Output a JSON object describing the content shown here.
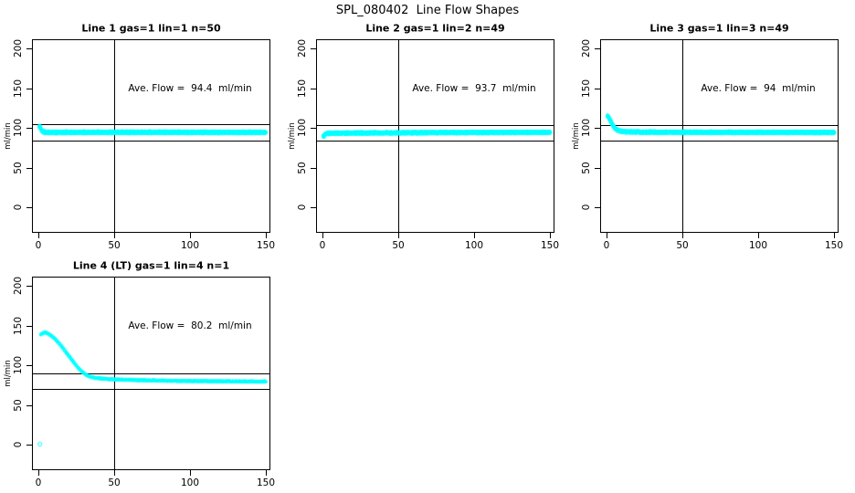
{
  "title": "SPL_080402  Line Flow Shapes",
  "colors": {
    "points": "#00ffff",
    "axis": "#000000",
    "background": "#ffffff"
  },
  "chart_data": [
    {
      "type": "scatter",
      "title": "Line 1 gas=1 lin=1 n=50",
      "annotation": "Ave. Flow =  94.4  ml/min",
      "ave_flow_ml_min": 94.4,
      "n_runs": 50,
      "ylabel": "ml/min",
      "xlim": [
        0,
        150
      ],
      "ylim": [
        0,
        200
      ],
      "x_ticks": [
        0,
        50,
        100,
        150
      ],
      "y_ticks": [
        0,
        50,
        100,
        150,
        200
      ],
      "vline_x": 50,
      "hlines": [
        104.4,
        84.4
      ],
      "spread": 1.3,
      "profile": [
        [
          1,
          101.5
        ],
        [
          1.5,
          99.5
        ],
        [
          2,
          97.5
        ],
        [
          2.5,
          96.3
        ],
        [
          3,
          95.5
        ],
        [
          4,
          94.8
        ],
        [
          5,
          94.5
        ],
        [
          8,
          94.3
        ],
        [
          20,
          94.3
        ],
        [
          60,
          94.4
        ],
        [
          100,
          94.3
        ],
        [
          150,
          94.2
        ]
      ],
      "extra_points": []
    },
    {
      "type": "scatter",
      "title": "Line 2 gas=1 lin=2 n=49",
      "annotation": "Ave. Flow =  93.7  ml/min",
      "ave_flow_ml_min": 93.7,
      "n_runs": 49,
      "ylabel": "ml/min",
      "xlim": [
        0,
        150
      ],
      "ylim": [
        0,
        200
      ],
      "x_ticks": [
        0,
        50,
        100,
        150
      ],
      "y_ticks": [
        0,
        50,
        100,
        150,
        200
      ],
      "vline_x": 50,
      "hlines": [
        103.7,
        83.7
      ],
      "spread": 1.2,
      "profile": [
        [
          1,
          89.5
        ],
        [
          1.5,
          91.0
        ],
        [
          2,
          92.3
        ],
        [
          3,
          93.0
        ],
        [
          5,
          93.3
        ],
        [
          20,
          93.5
        ],
        [
          60,
          93.8
        ],
        [
          100,
          94.0
        ],
        [
          150,
          94.3
        ]
      ],
      "extra_points": []
    },
    {
      "type": "scatter",
      "title": "Line 3 gas=1 lin=3 n=49",
      "annotation": "Ave. Flow =  94  ml/min",
      "ave_flow_ml_min": 94,
      "n_runs": 49,
      "ylabel": "ml/min",
      "xlim": [
        0,
        150
      ],
      "ylim": [
        0,
        200
      ],
      "x_ticks": [
        0,
        50,
        100,
        150
      ],
      "y_ticks": [
        0,
        50,
        100,
        150,
        200
      ],
      "vline_x": 50,
      "hlines": [
        104.0,
        84.0
      ],
      "spread": 1.2,
      "profile": [
        [
          1,
          114.5
        ],
        [
          1.5,
          113.0
        ],
        [
          2,
          111.5
        ],
        [
          2.5,
          109.5
        ],
        [
          3,
          107.5
        ],
        [
          3.5,
          105.5
        ],
        [
          4,
          103.5
        ],
        [
          5,
          100.5
        ],
        [
          6,
          98.5
        ],
        [
          7,
          97.3
        ],
        [
          8,
          96.5
        ],
        [
          10,
          95.6
        ],
        [
          14,
          95.0
        ],
        [
          25,
          94.6
        ],
        [
          60,
          94.4
        ],
        [
          100,
          94.3
        ],
        [
          150,
          94.2
        ]
      ],
      "extra_points": []
    },
    {
      "type": "scatter",
      "title": "Line 4 (LT) gas=1 lin=4 n=1",
      "annotation": "Ave. Flow =  80.2  ml/min",
      "ave_flow_ml_min": 80.2,
      "n_runs": 1,
      "ylabel": "ml/min",
      "xlim": [
        0,
        150
      ],
      "ylim": [
        0,
        200
      ],
      "x_ticks": [
        0,
        50,
        100,
        150
      ],
      "y_ticks": [
        0,
        50,
        100,
        150,
        200
      ],
      "vline_x": 50,
      "hlines": [
        90.2,
        70.2
      ],
      "spread": 0.55,
      "profile": [
        [
          1.5,
          138.5
        ],
        [
          2.5,
          140.0
        ],
        [
          4,
          141.3
        ],
        [
          5.5,
          140.8
        ],
        [
          7,
          139.3
        ],
        [
          9,
          136.5
        ],
        [
          11,
          133.0
        ],
        [
          13,
          129.0
        ],
        [
          15,
          124.5
        ],
        [
          17,
          119.5
        ],
        [
          19,
          114.5
        ],
        [
          21,
          109.5
        ],
        [
          23,
          104.5
        ],
        [
          25,
          99.5
        ],
        [
          27,
          95.0
        ],
        [
          29,
          91.5
        ],
        [
          31,
          88.5
        ],
        [
          33,
          86.5
        ],
        [
          35,
          85.2
        ],
        [
          38,
          84.0
        ],
        [
          42,
          83.2
        ],
        [
          47,
          82.5
        ],
        [
          55,
          81.8
        ],
        [
          70,
          81.0
        ],
        [
          90,
          80.4
        ],
        [
          110,
          80.0
        ],
        [
          130,
          79.7
        ],
        [
          150,
          79.4
        ]
      ],
      "extra_points": [
        [
          1,
          0.5
        ]
      ]
    }
  ]
}
